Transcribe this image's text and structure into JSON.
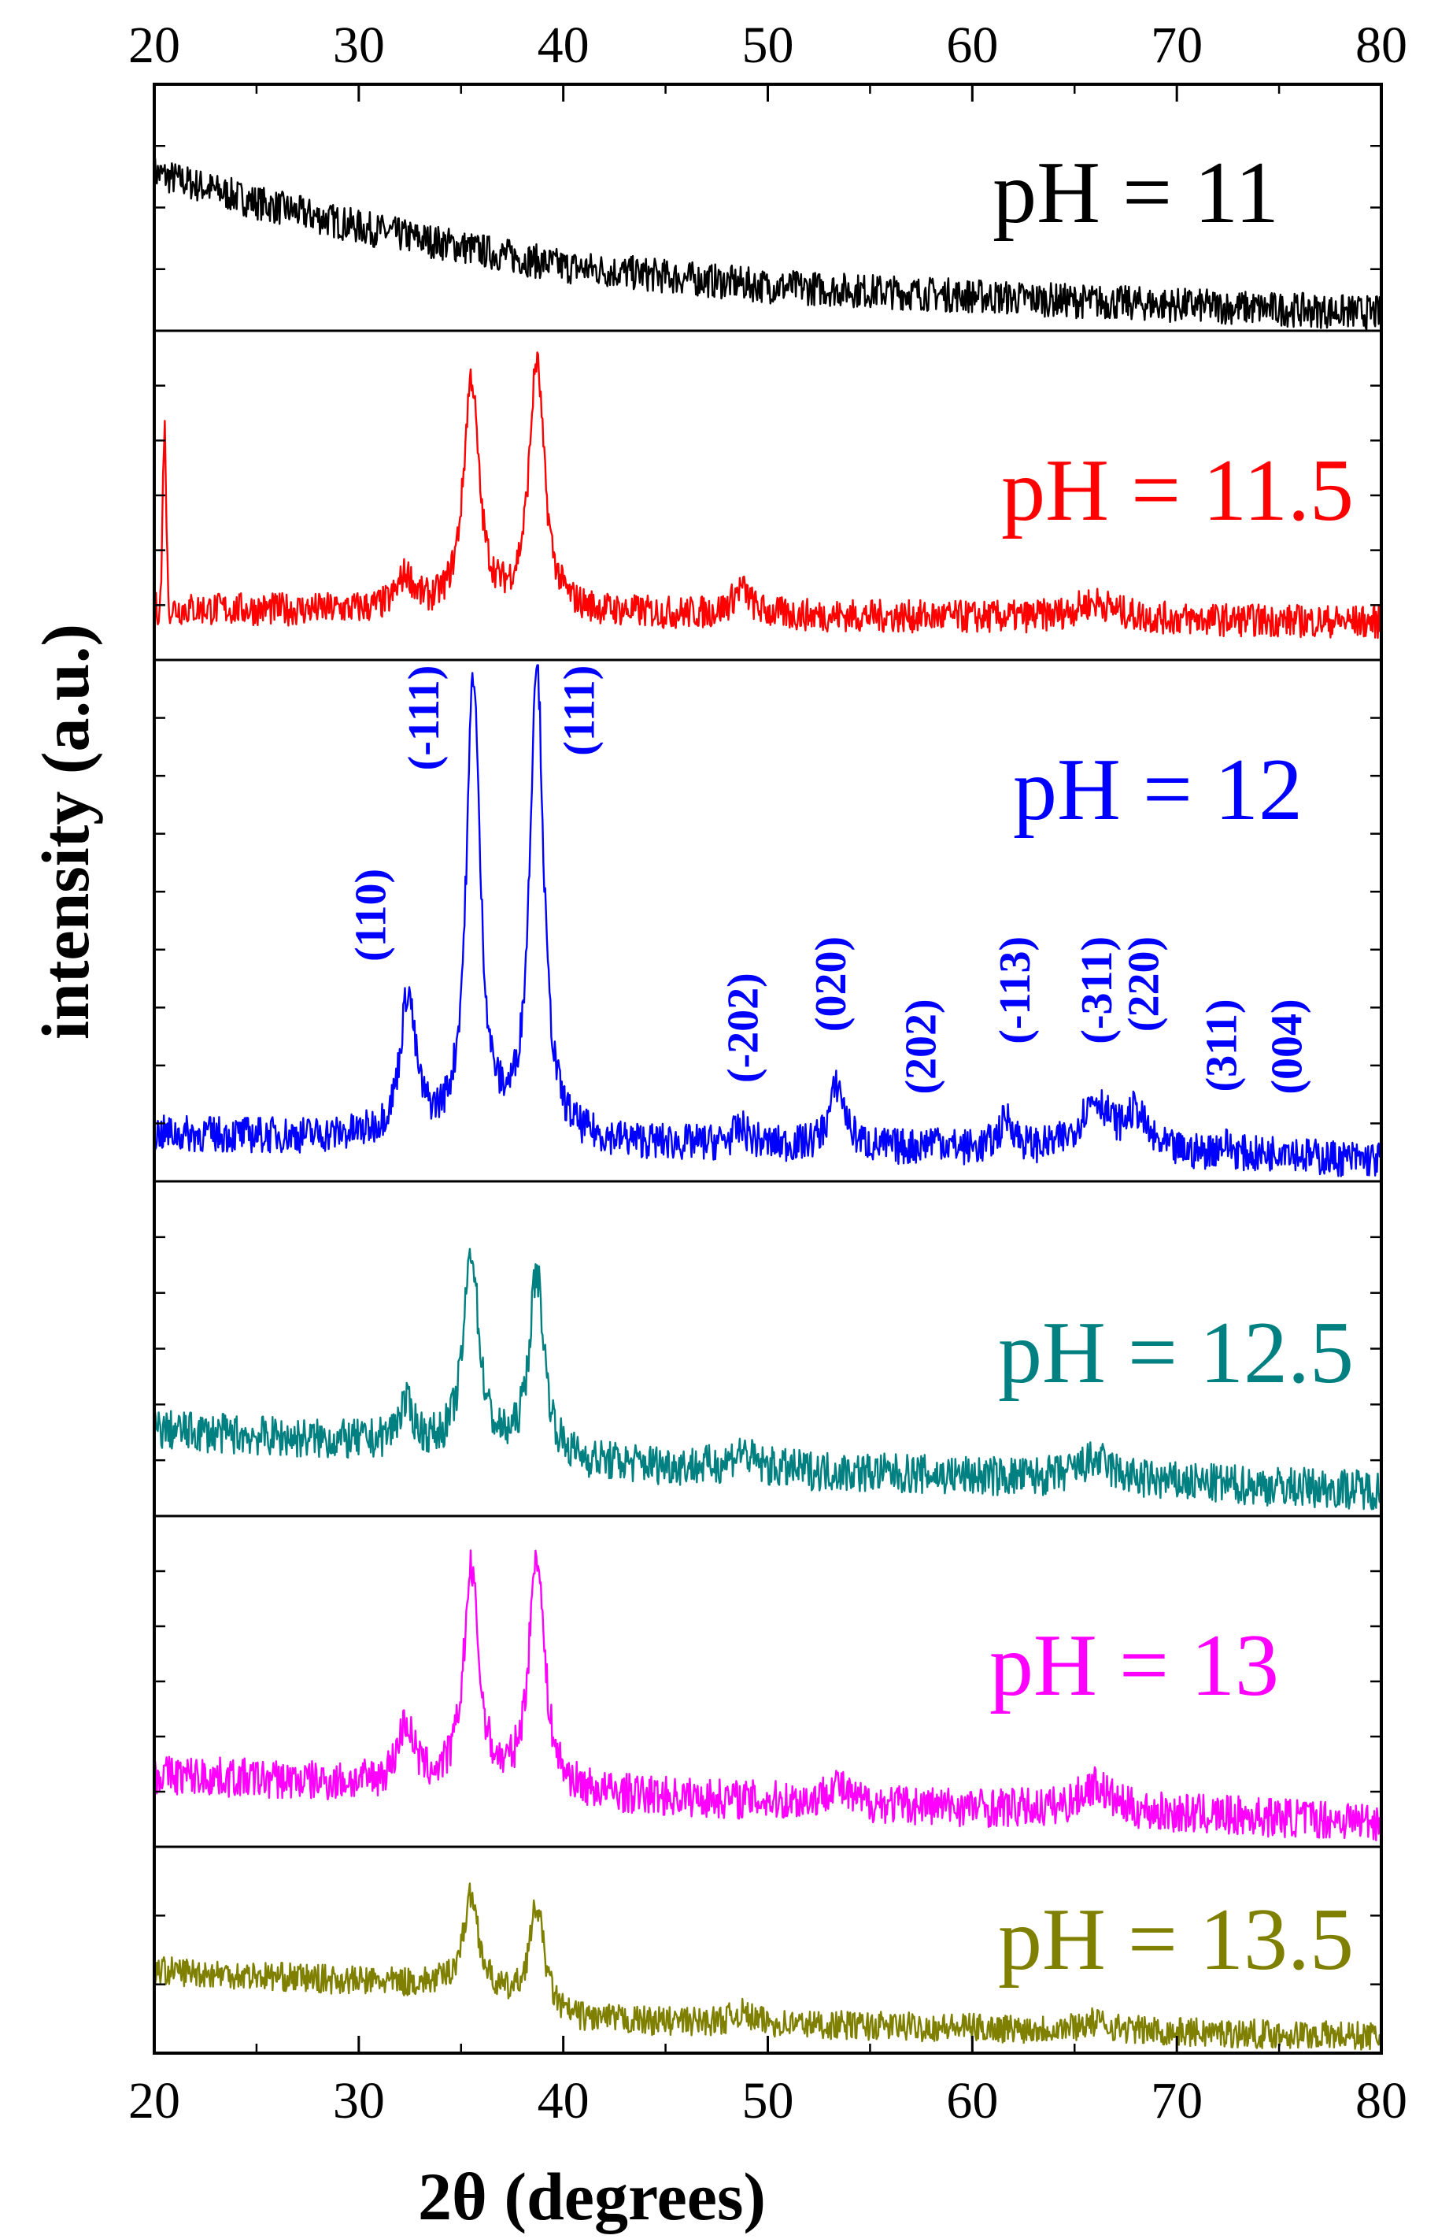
{
  "chart_data": {
    "type": "line",
    "title": "",
    "xlabel": "2θ (degrees)",
    "ylabel": "intensity (a.u.)",
    "xlim": [
      20,
      80
    ],
    "xticks": [
      "20",
      "30",
      "40",
      "50",
      "60",
      "70",
      "80"
    ],
    "grid": false,
    "legend": "none",
    "noise_seed": 7,
    "panels": [
      {
        "label": "pH = 11",
        "color": "#000000",
        "baseline": [
          [
            20,
            0.62
          ],
          [
            25,
            0.5
          ],
          [
            30,
            0.4
          ],
          [
            40,
            0.24
          ],
          [
            50,
            0.16
          ],
          [
            65,
            0.1
          ],
          [
            80,
            0.05
          ]
        ],
        "noise": 0.14,
        "peaks": []
      },
      {
        "label": "pH = 11.5",
        "color": "#ff0000",
        "baseline": [
          [
            20,
            0.14
          ],
          [
            80,
            0.1
          ]
        ],
        "noise": 0.1,
        "edge_spike": {
          "x": 20.5,
          "height": 0.55
        },
        "peaks": [
          {
            "x": 32.3,
            "height": 0.1,
            "width": 0.5
          },
          {
            "x": 35.5,
            "height": 0.7,
            "width": 0.45
          },
          {
            "x": 38.7,
            "height": 0.75,
            "width": 0.45
          },
          {
            "x": 48.7,
            "height": 0.08,
            "width": 0.5
          },
          {
            "x": 66.0,
            "height": 0.05,
            "width": 1.2
          }
        ]
      },
      {
        "label": "pH = 12",
        "color": "#0000ff",
        "baseline": [
          [
            20,
            0.08
          ],
          [
            80,
            0.03
          ]
        ],
        "noise": 0.07,
        "peaks": [
          {
            "x": 32.4,
            "height": 0.27,
            "width": 0.45
          },
          {
            "x": 35.6,
            "height": 0.88,
            "width": 0.4
          },
          {
            "x": 38.7,
            "height": 0.92,
            "width": 0.4
          },
          {
            "x": 48.7,
            "height": 0.03,
            "width": 0.5
          },
          {
            "x": 53.4,
            "height": 0.12,
            "width": 0.45
          },
          {
            "x": 58.2,
            "height": 0.02,
            "width": 0.5
          },
          {
            "x": 61.7,
            "height": 0.06,
            "width": 0.45
          },
          {
            "x": 66.0,
            "height": 0.1,
            "width": 0.9
          },
          {
            "x": 68.0,
            "height": 0.07,
            "width": 0.6
          },
          {
            "x": 72.3,
            "height": 0.02,
            "width": 0.5
          },
          {
            "x": 75.3,
            "height": 0.02,
            "width": 0.5
          }
        ],
        "hkl_labels": [
          {
            "text": "(110)",
            "x": 30.8,
            "level": 0.6
          },
          {
            "text": "(-111)",
            "x": 33.4,
            "level": 0.99
          },
          {
            "text": "(111)",
            "x": 41.0,
            "level": 0.99
          },
          {
            "text": "(-202)",
            "x": 49.0,
            "level": 0.4
          },
          {
            "text": "(020)",
            "x": 53.3,
            "level": 0.47
          },
          {
            "text": "(202)",
            "x": 57.7,
            "level": 0.35
          },
          {
            "text": "(-113)",
            "x": 62.3,
            "level": 0.47
          },
          {
            "text": "(-311)",
            "x": 66.3,
            "level": 0.47
          },
          {
            "text": "(220)",
            "x": 68.6,
            "level": 0.47
          },
          {
            "text": "(311)",
            "x": 72.4,
            "level": 0.35
          },
          {
            "text": "(004)",
            "x": 75.6,
            "level": 0.35
          }
        ]
      },
      {
        "label": "pH = 12.5",
        "color": "#008080",
        "baseline": [
          [
            20,
            0.24
          ],
          [
            30,
            0.2
          ],
          [
            40,
            0.14
          ],
          [
            80,
            0.06
          ]
        ],
        "noise": 0.12,
        "peaks": [
          {
            "x": 32.3,
            "height": 0.12,
            "width": 0.5
          },
          {
            "x": 35.5,
            "height": 0.6,
            "width": 0.45
          },
          {
            "x": 38.7,
            "height": 0.55,
            "width": 0.45
          },
          {
            "x": 48.7,
            "height": 0.05,
            "width": 0.6
          },
          {
            "x": 66.0,
            "height": 0.06,
            "width": 1.0
          }
        ]
      },
      {
        "label": "pH = 13",
        "color": "#ff00ff",
        "baseline": [
          [
            20,
            0.2
          ],
          [
            40,
            0.14
          ],
          [
            80,
            0.06
          ]
        ],
        "noise": 0.12,
        "peaks": [
          {
            "x": 32.3,
            "height": 0.18,
            "width": 0.5
          },
          {
            "x": 35.5,
            "height": 0.65,
            "width": 0.45
          },
          {
            "x": 38.7,
            "height": 0.72,
            "width": 0.45
          },
          {
            "x": 53.3,
            "height": 0.06,
            "width": 0.5
          },
          {
            "x": 66.0,
            "height": 0.08,
            "width": 0.9
          }
        ]
      },
      {
        "label": "pH = 13.5",
        "color": "#808000",
        "baseline": [
          [
            20,
            0.38
          ],
          [
            35,
            0.3
          ],
          [
            40,
            0.14
          ],
          [
            80,
            0.06
          ]
        ],
        "noise": 0.14,
        "peaks": [
          {
            "x": 35.5,
            "height": 0.45,
            "width": 0.45
          },
          {
            "x": 38.7,
            "height": 0.5,
            "width": 0.45
          },
          {
            "x": 48.7,
            "height": 0.05,
            "width": 0.6
          },
          {
            "x": 66.0,
            "height": 0.04,
            "width": 1.0
          }
        ]
      }
    ]
  }
}
